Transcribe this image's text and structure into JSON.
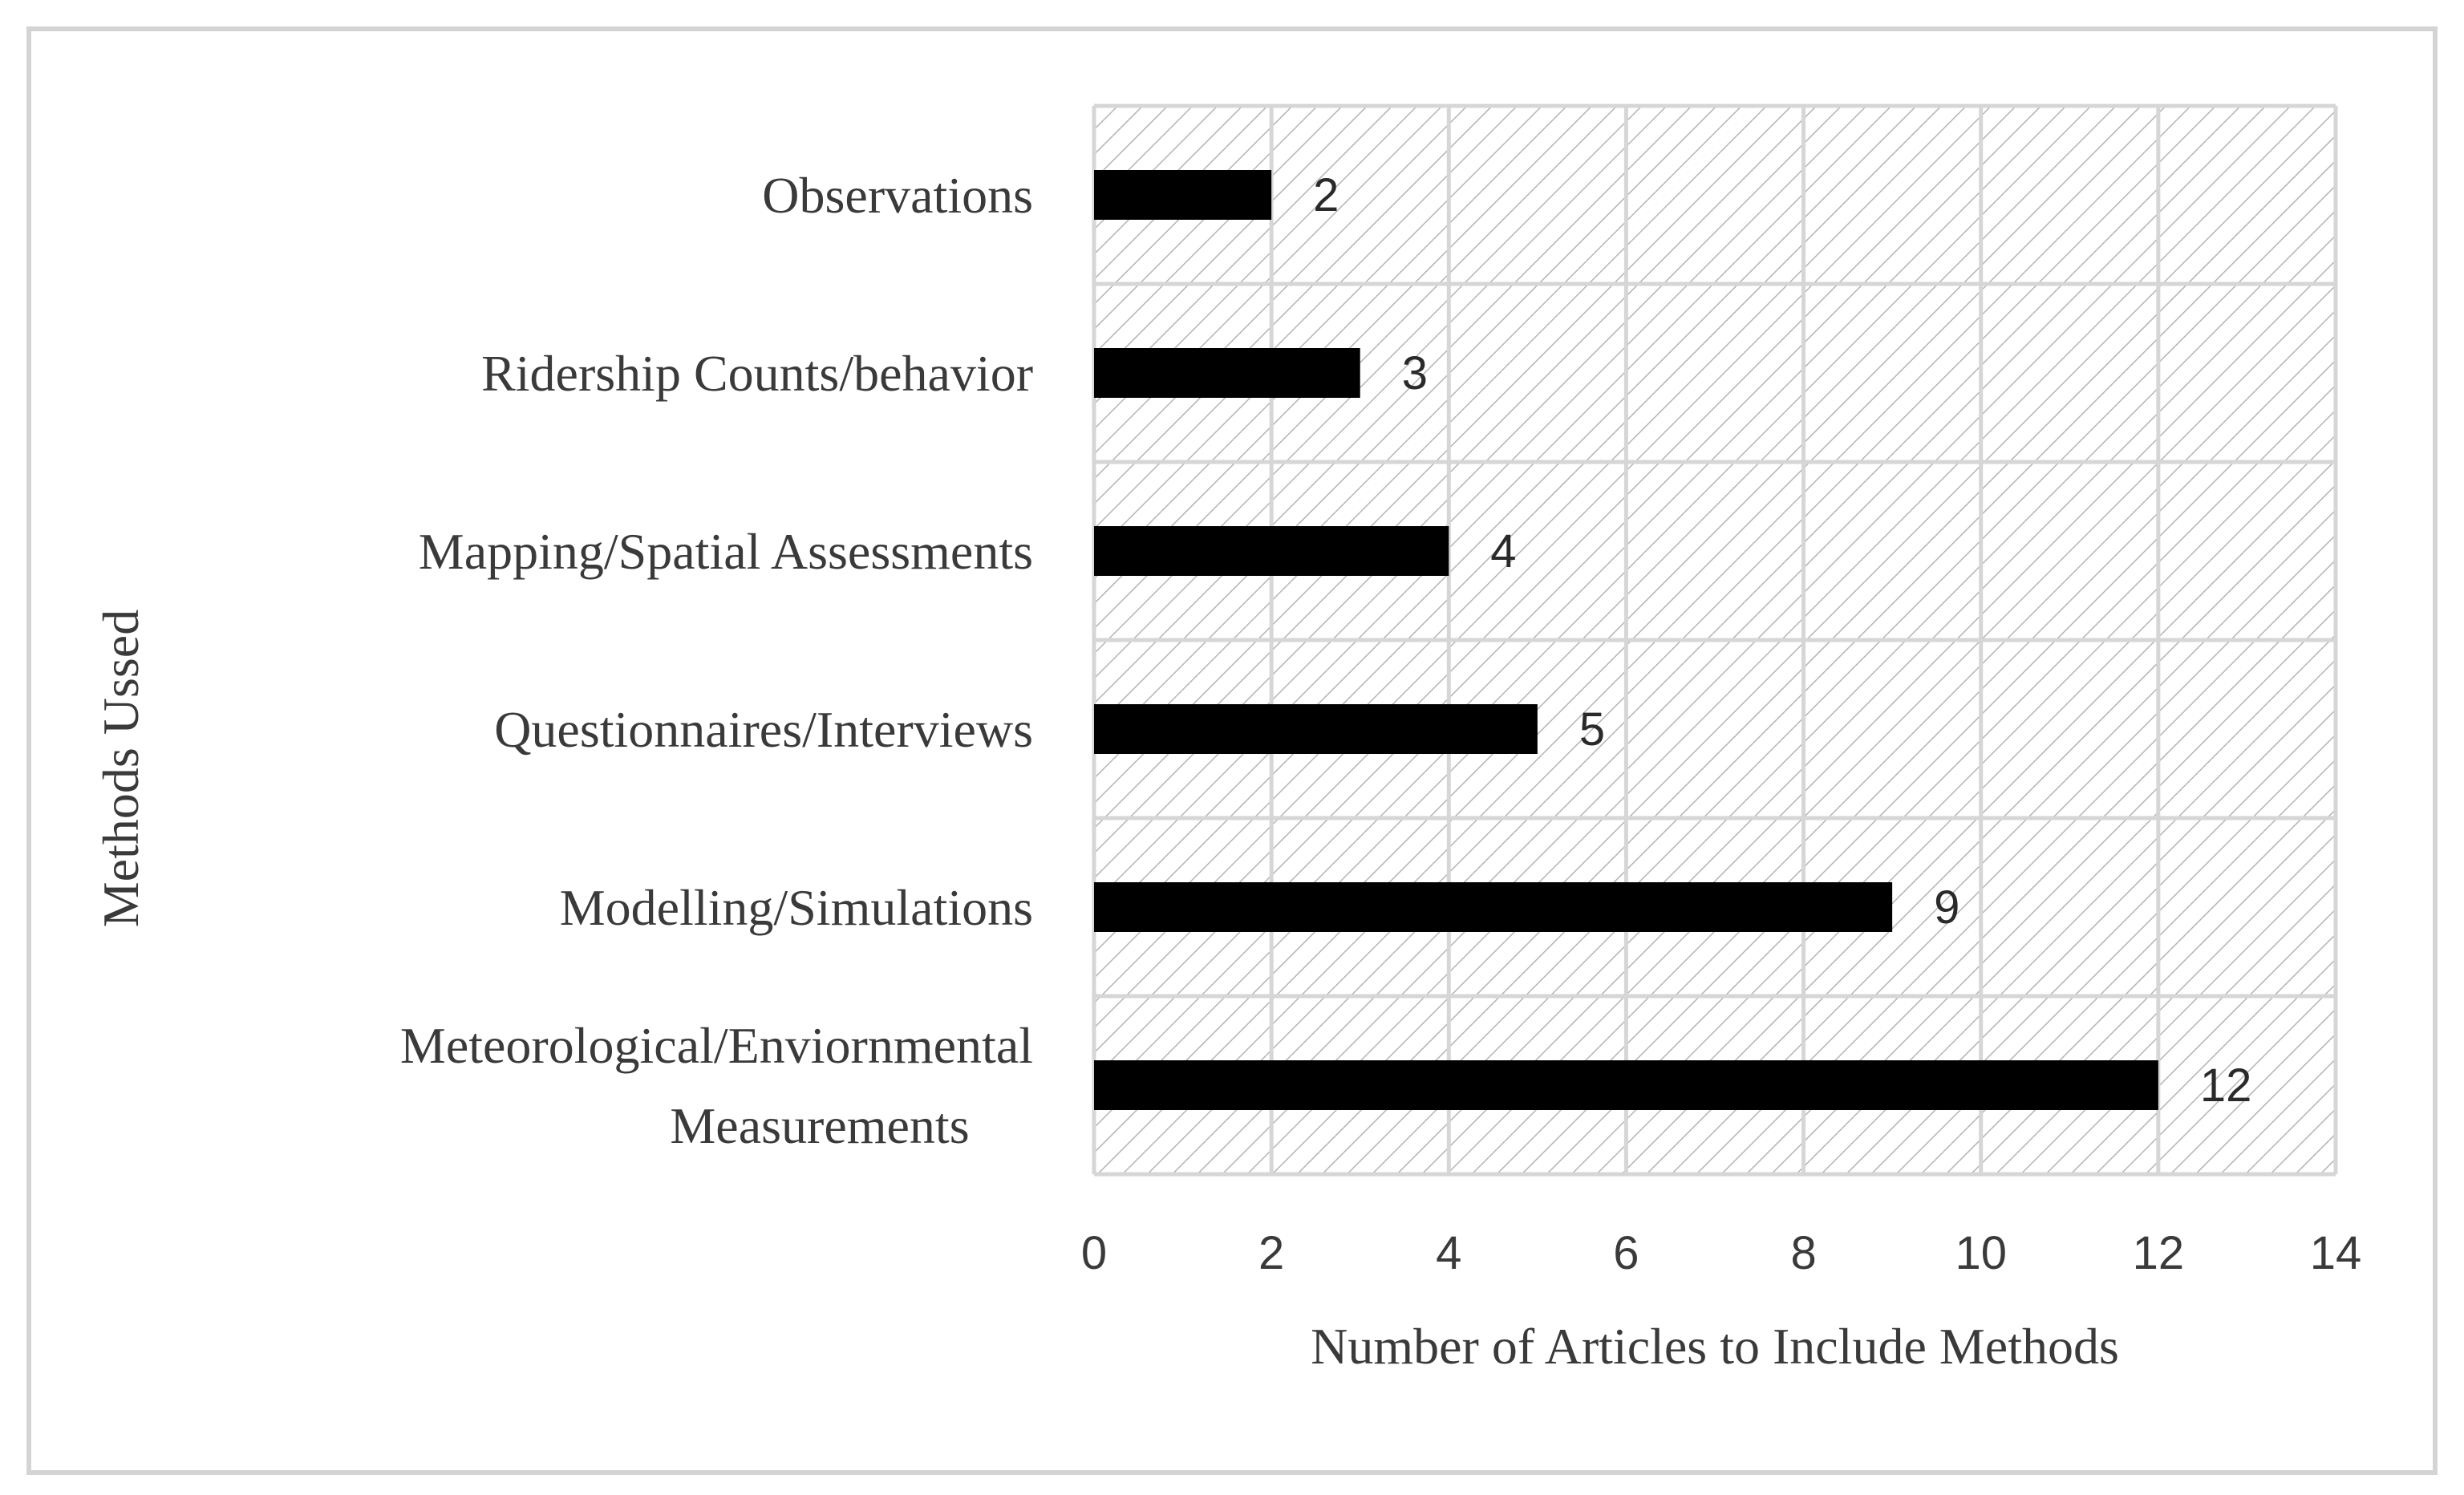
{
  "chart_data": {
    "type": "bar",
    "orientation": "horizontal",
    "title": "",
    "xlabel": "Number of Articles to Include Methods",
    "ylabel": "Methods Ussed",
    "categories": [
      "Observations",
      "Ridership Counts/behavior",
      "Mapping/Spatial Assessments",
      "Questionnaires/Interviews",
      "Modelling/Simulations",
      "Meteorological/Enviornmental Measurements"
    ],
    "category_lines": [
      [
        "Observations"
      ],
      [
        "Ridership Counts/behavior"
      ],
      [
        "Mapping/Spatial Assessments"
      ],
      [
        "Questionnaires/Interviews"
      ],
      [
        "Modelling/Simulations"
      ],
      [
        "Meteorological/Enviornmental",
        "Measurements"
      ]
    ],
    "values": [
      2,
      3,
      4,
      5,
      9,
      12
    ],
    "data_labels": [
      "2",
      "3",
      "4",
      "5",
      "9",
      "12"
    ],
    "xlim": [
      0,
      14
    ],
    "xticks": [
      "0",
      "2",
      "4",
      "6",
      "8",
      "10",
      "12",
      "14"
    ],
    "grid": true,
    "bar_color": "#000000",
    "plot_background": "hatched light gray"
  }
}
